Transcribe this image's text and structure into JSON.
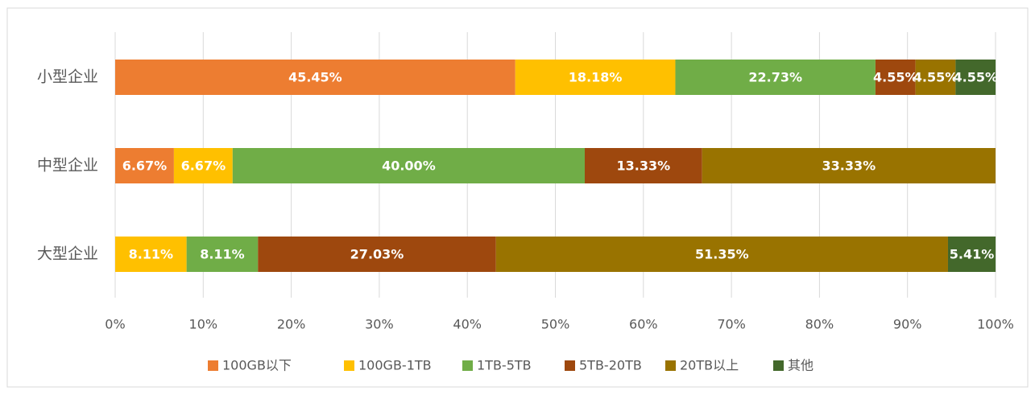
{
  "chart_data": {
    "type": "stacked_bar_horizontal",
    "categories": [
      "小型企业",
      "中型企业",
      "大型企业"
    ],
    "series": [
      {
        "name": "100GB以下",
        "color": "#ED7D31",
        "values": [
          45.45,
          6.67,
          0
        ],
        "value_labels": [
          "45.45%",
          "6.67%",
          null
        ]
      },
      {
        "name": "100GB-1TB",
        "color": "#FFC000",
        "values": [
          18.18,
          6.67,
          8.11
        ],
        "value_labels": [
          "18.18%",
          "6.67%",
          "8.11%"
        ]
      },
      {
        "name": "1TB-5TB",
        "color": "#70AD47",
        "values": [
          22.73,
          40.0,
          8.11
        ],
        "value_labels": [
          "22.73%",
          "40.00%",
          "8.11%"
        ]
      },
      {
        "name": "5TB-20TB",
        "color": "#9E480E",
        "values": [
          4.55,
          13.33,
          27.03
        ],
        "value_labels": [
          "4.55%",
          "13.33%",
          "27.03%"
        ]
      },
      {
        "name": "20TB以上",
        "color": "#997300",
        "values": [
          4.55,
          33.33,
          51.35
        ],
        "value_labels": [
          "4.55%",
          "33.33%",
          "51.35%"
        ]
      },
      {
        "name": "其他",
        "color": "#43682B",
        "values": [
          4.55,
          0,
          5.41
        ],
        "value_labels": [
          "4.55%",
          null,
          "5.41%"
        ]
      }
    ],
    "xlim": [
      0,
      100
    ],
    "xticks": [
      {
        "value": 0,
        "label": "0%"
      },
      {
        "value": 10,
        "label": "10%"
      },
      {
        "value": 20,
        "label": "20%"
      },
      {
        "value": 30,
        "label": "30%"
      },
      {
        "value": 40,
        "label": "40%"
      },
      {
        "value": 50,
        "label": "50%"
      },
      {
        "value": 60,
        "label": "60%"
      },
      {
        "value": 70,
        "label": "70%"
      },
      {
        "value": 80,
        "label": "80%"
      },
      {
        "value": 90,
        "label": "90%"
      },
      {
        "value": 100,
        "label": "100%"
      }
    ],
    "grid": true,
    "legend": "bottom"
  }
}
